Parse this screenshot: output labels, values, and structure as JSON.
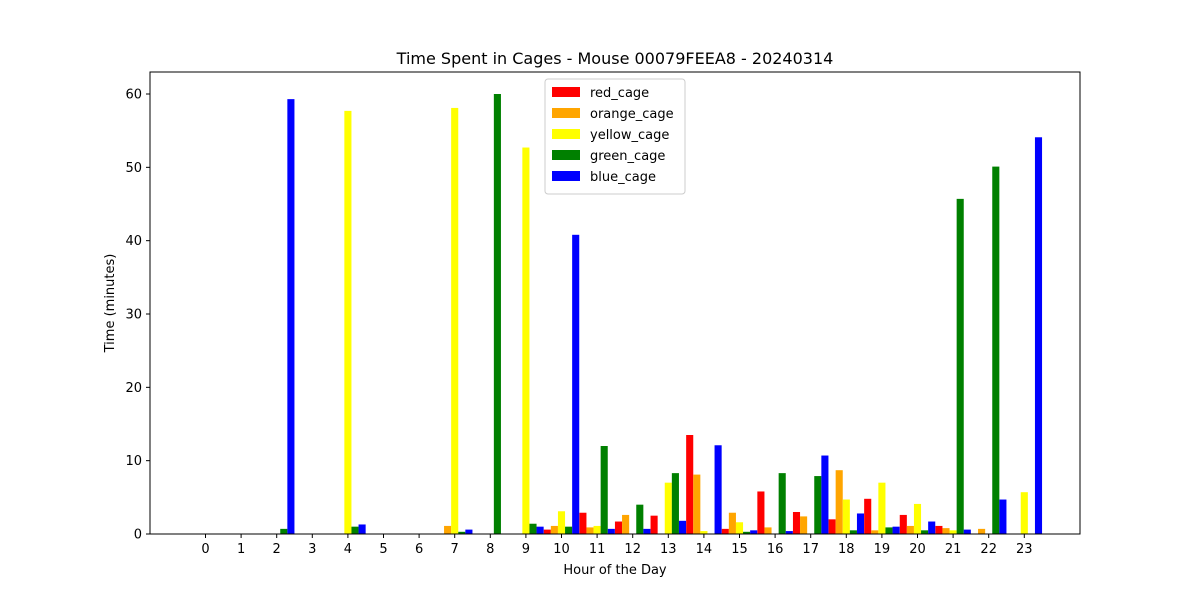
{
  "chart_data": {
    "type": "bar",
    "title": "Time Spent in Cages - Mouse 00079FEEA8 - 20240314",
    "xlabel": "Hour of the Day",
    "ylabel": "Time (minutes)",
    "ylim": [
      0,
      63
    ],
    "yticks": [
      0,
      10,
      20,
      30,
      40,
      50,
      60
    ],
    "categories": [
      "0",
      "1",
      "2",
      "3",
      "4",
      "5",
      "6",
      "7",
      "8",
      "9",
      "10",
      "11",
      "12",
      "13",
      "14",
      "15",
      "16",
      "17",
      "18",
      "19",
      "20",
      "21",
      "22",
      "23"
    ],
    "legend_position": "top-center",
    "grid": false,
    "series": [
      {
        "name": "red_cage",
        "color": "#ff0000",
        "values": [
          0,
          0,
          0,
          0,
          0,
          0,
          0,
          0,
          0,
          0,
          0.6,
          2.9,
          1.7,
          2.5,
          13.5,
          0.7,
          5.8,
          3.0,
          2.0,
          4.8,
          2.6,
          1.1,
          0,
          0
        ]
      },
      {
        "name": "orange_cage",
        "color": "#ffa500",
        "values": [
          0,
          0,
          0,
          0,
          0,
          0,
          0,
          1.1,
          0,
          0,
          1.1,
          0.9,
          2.6,
          0,
          8.1,
          2.9,
          0.9,
          2.4,
          8.7,
          0.5,
          1.1,
          0.8,
          0.7,
          0
        ]
      },
      {
        "name": "yellow_cage",
        "color": "#ffff00",
        "values": [
          0,
          0,
          0,
          0,
          57.7,
          0,
          0,
          58.1,
          0,
          52.7,
          3.1,
          1.1,
          0,
          7.0,
          0.4,
          1.6,
          0,
          0,
          4.7,
          7.0,
          4.1,
          0.5,
          0,
          5.7
        ]
      },
      {
        "name": "green_cage",
        "color": "#008000",
        "values": [
          0,
          0,
          0.7,
          0,
          1.0,
          0,
          0,
          0.3,
          60.0,
          1.4,
          1.0,
          12.0,
          4.0,
          8.3,
          0,
          0.3,
          8.3,
          7.9,
          0.5,
          0.9,
          0.5,
          45.7,
          50.1,
          0
        ]
      },
      {
        "name": "blue_cage",
        "color": "#0000ff",
        "values": [
          0,
          0,
          59.3,
          0,
          1.3,
          0,
          0,
          0.6,
          0,
          1.0,
          40.8,
          0.7,
          0.7,
          1.8,
          12.1,
          0.5,
          0.4,
          10.7,
          2.8,
          1.0,
          1.7,
          0.6,
          4.7,
          54.1
        ]
      }
    ]
  }
}
